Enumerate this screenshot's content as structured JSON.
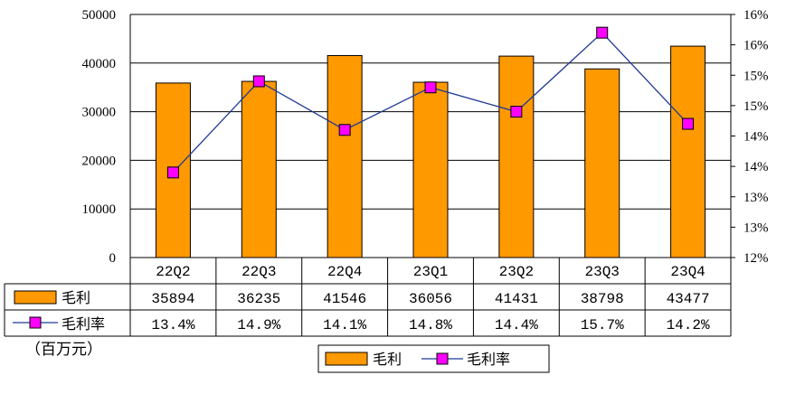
{
  "chart_data": {
    "type": "bar",
    "categories": [
      "22Q2",
      "22Q3",
      "22Q4",
      "23Q1",
      "23Q2",
      "23Q3",
      "23Q4"
    ],
    "series": [
      {
        "name": "毛利",
        "type": "bar",
        "axis": "left",
        "color": "#FF9900",
        "values": [
          35894,
          36235,
          41546,
          36056,
          41431,
          38798,
          43477
        ],
        "labels": [
          "35894",
          "36235",
          "41546",
          "36056",
          "41431",
          "38798",
          "43477"
        ]
      },
      {
        "name": "毛利率",
        "type": "line",
        "axis": "right",
        "color": "#FF00FF",
        "line_color": "#1F3A93",
        "values": [
          13.4,
          14.9,
          14.1,
          14.8,
          14.4,
          15.7,
          14.2
        ],
        "labels": [
          "13.4%",
          "14.9%",
          "14.1%",
          "14.8%",
          "14.4%",
          "15.7%",
          "14.2%"
        ]
      }
    ],
    "left_axis": {
      "min": 0,
      "max": 50000,
      "ticks": [
        "0",
        "10000",
        "20000",
        "30000",
        "40000",
        "50000"
      ]
    },
    "right_axis": {
      "min": 12,
      "max": 16,
      "ticks": [
        "12%",
        "13%",
        "13%",
        "14%",
        "14%",
        "15%",
        "15%",
        "16%",
        "16%"
      ]
    },
    "unit_label": "（百万元）",
    "grid": true,
    "legend_position": "bottom",
    "data_table": true
  }
}
